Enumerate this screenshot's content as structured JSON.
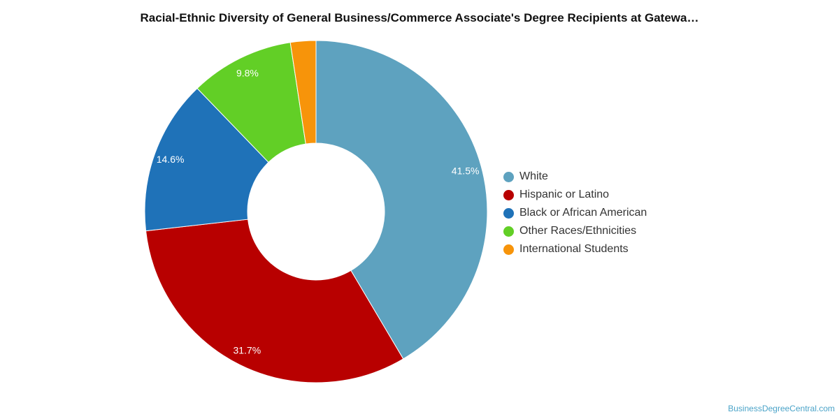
{
  "chart_data": {
    "type": "pie",
    "title": "Racial-Ethnic Diversity of General Business/Commerce Associate's Degree Recipients at Gatewa…",
    "categories": [
      "White",
      "Hispanic or Latino",
      "Black or African American",
      "Other Races/Ethnicities",
      "International Students"
    ],
    "values": [
      41.5,
      31.7,
      14.6,
      9.8,
      2.4
    ],
    "data_labels": [
      "41.5%",
      "31.7%",
      "14.6%",
      "9.8%",
      ""
    ],
    "colors": [
      "#5ea2bf",
      "#b80000",
      "#1f72b8",
      "#62cf26",
      "#f7940a"
    ],
    "donut": true,
    "legend_position": "right"
  },
  "credit": "BusinessDegreeCentral.com"
}
